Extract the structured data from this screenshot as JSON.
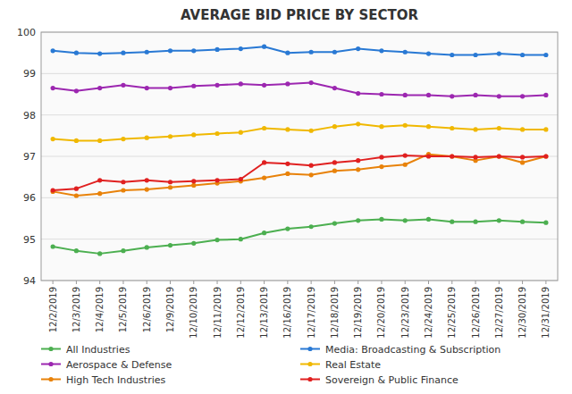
{
  "chart_data": {
    "type": "line",
    "title": "AVERAGE BID PRICE BY SECTOR",
    "categories": [
      "12/2/2019",
      "12/3/2019",
      "12/4/2019",
      "12/5/2019",
      "12/6/2019",
      "12/9/2019",
      "12/10/2019",
      "12/11/2019",
      "12/12/2019",
      "12/13/2019",
      "12/16/2019",
      "12/17/2019",
      "12/18/2019",
      "12/19/2019",
      "12/20/2019",
      "12/23/2019",
      "12/24/2019",
      "12/25/2019",
      "12/26/2019",
      "12/27/2019",
      "12/30/2019",
      "12/31/2019"
    ],
    "series": [
      {
        "name": "All Industries",
        "color": "#4caf50",
        "values": [
          94.82,
          94.72,
          94.65,
          94.72,
          94.8,
          94.85,
          94.9,
          94.98,
          95.0,
          95.15,
          95.25,
          95.3,
          95.38,
          95.45,
          95.48,
          95.45,
          95.48,
          95.42,
          95.42,
          95.45,
          95.42,
          95.4
        ]
      },
      {
        "name": "Aerospace & Defense",
        "color": "#9c27b0",
        "values": [
          98.65,
          98.58,
          98.65,
          98.72,
          98.65,
          98.65,
          98.7,
          98.72,
          98.75,
          98.72,
          98.75,
          98.78,
          98.65,
          98.52,
          98.5,
          98.48,
          98.48,
          98.45,
          98.48,
          98.45,
          98.45,
          98.48
        ]
      },
      {
        "name": "High Tech Industries",
        "color": "#e8820a",
        "values": [
          96.15,
          96.05,
          96.1,
          96.18,
          96.2,
          96.25,
          96.3,
          96.35,
          96.4,
          96.48,
          96.58,
          96.55,
          96.65,
          96.68,
          96.75,
          96.8,
          97.05,
          97.0,
          96.9,
          97.0,
          96.85,
          97.0
        ]
      },
      {
        "name": "Media: Broadcasting & Subscription",
        "color": "#2979d4",
        "values": [
          99.55,
          99.5,
          99.48,
          99.5,
          99.52,
          99.55,
          99.55,
          99.58,
          99.6,
          99.65,
          99.5,
          99.52,
          99.52,
          99.6,
          99.55,
          99.52,
          99.48,
          99.45,
          99.45,
          99.48,
          99.45,
          99.45
        ]
      },
      {
        "name": "Real Estate",
        "color": "#f0b800",
        "values": [
          97.42,
          97.38,
          97.38,
          97.42,
          97.45,
          97.48,
          97.52,
          97.55,
          97.58,
          97.68,
          97.65,
          97.62,
          97.72,
          97.78,
          97.72,
          97.75,
          97.72,
          97.68,
          97.65,
          97.68,
          97.65,
          97.65
        ]
      },
      {
        "name": "Sovereign & Public Finance",
        "color": "#e02020",
        "values": [
          96.18,
          96.22,
          96.42,
          96.38,
          96.42,
          96.38,
          96.4,
          96.42,
          96.45,
          96.85,
          96.82,
          96.78,
          96.85,
          96.9,
          96.98,
          97.02,
          97.0,
          97.0,
          96.98,
          97.0,
          96.98,
          97.0
        ]
      }
    ],
    "ylim": [
      94,
      100
    ],
    "yticks": [
      94,
      95,
      96,
      97,
      98,
      99,
      100
    ],
    "grid": true,
    "marker": "circle",
    "legend": "bottom"
  }
}
